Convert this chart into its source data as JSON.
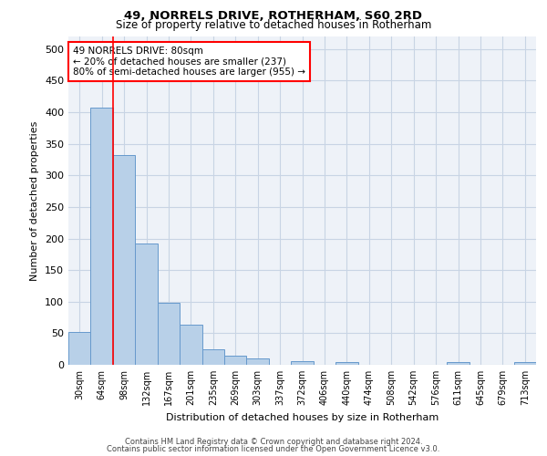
{
  "title": "49, NORRELS DRIVE, ROTHERHAM, S60 2RD",
  "subtitle": "Size of property relative to detached houses in Rotherham",
  "xlabel": "Distribution of detached houses by size in Rotherham",
  "ylabel": "Number of detached properties",
  "categories": [
    "30sqm",
    "64sqm",
    "98sqm",
    "132sqm",
    "167sqm",
    "201sqm",
    "235sqm",
    "269sqm",
    "303sqm",
    "337sqm",
    "372sqm",
    "406sqm",
    "440sqm",
    "474sqm",
    "508sqm",
    "542sqm",
    "576sqm",
    "611sqm",
    "645sqm",
    "679sqm",
    "713sqm"
  ],
  "values": [
    52,
    408,
    332,
    192,
    98,
    63,
    24,
    14,
    10,
    0,
    6,
    0,
    4,
    0,
    0,
    0,
    0,
    4,
    0,
    0,
    4
  ],
  "bar_color": "#b8d0e8",
  "bar_edge_color": "#6699cc",
  "grid_color": "#c8d4e4",
  "background_color": "#eef2f8",
  "red_line_bar_index": 1,
  "annotation_text": "49 NORRELS DRIVE: 80sqm\n← 20% of detached houses are smaller (237)\n80% of semi-detached houses are larger (955) →",
  "annotation_box_color": "white",
  "annotation_box_edge_color": "red",
  "ylim": [
    0,
    520
  ],
  "yticks": [
    0,
    50,
    100,
    150,
    200,
    250,
    300,
    350,
    400,
    450,
    500
  ],
  "title_fontsize": 9.5,
  "subtitle_fontsize": 8.5,
  "ylabel_fontsize": 8,
  "xlabel_fontsize": 8,
  "tick_fontsize": 7,
  "footer_line1": "Contains HM Land Registry data © Crown copyright and database right 2024.",
  "footer_line2": "Contains public sector information licensed under the Open Government Licence v3.0."
}
